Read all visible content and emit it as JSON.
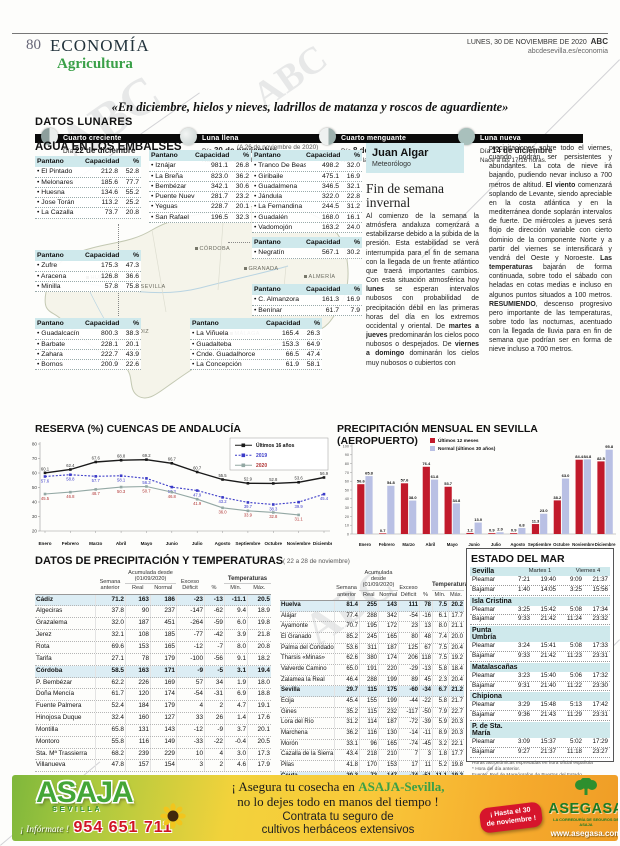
{
  "header": {
    "page_number": "80",
    "section": "ECONOMÍA",
    "subsection": "Agricultura",
    "date": "LUNES, 30 DE NOVIEMBRE DE 2020",
    "brand": "ABC",
    "site": "abcdesevilla.es/economia"
  },
  "quote": "«En diciembre, hielos y nieves, ladrillos de matanza y roscos de aguardiente»",
  "lunar": {
    "title": "DATOS LUNARES",
    "phases": [
      {
        "name": "Cuarto creciente",
        "day_label": "Día",
        "date": "22 de diciembre",
        "rise": "Nace a las 0:41 horas.",
        "icon": "waxing"
      },
      {
        "name": "Luna llena",
        "day_label": "Día",
        "date": "30 de noviembre",
        "rise": "Nace a las 10:30 horas.",
        "icon": "full"
      },
      {
        "name": "Cuarto menguante",
        "day_label": "Día",
        "date": "8 de diciembre",
        "rise": "Nace a las 1:36 horas.",
        "icon": "waning"
      },
      {
        "name": "Luna nueva",
        "day_label": "Día",
        "date": "14 de diciembre",
        "rise": "Nace a las 17:16 horas.",
        "icon": "new"
      }
    ]
  },
  "embalses": {
    "title": "AGUA EN LOS EMBALSES",
    "note": "(A 26 de noviembre de 2020)",
    "col_headers": {
      "name": "Pantano",
      "cap": "Capacidad",
      "pct": "%"
    },
    "map_cities": [
      "CÓRDOBA",
      "GRANADA",
      "ALMERÍA",
      "SEVILLA",
      "HUELVA",
      "CÁDIZ",
      "MÁLAGA"
    ],
    "tables": {
      "t1": [
        {
          "name": "El Pintado",
          "cap": "212.8",
          "pct": "52.8"
        },
        {
          "name": "Melonares",
          "cap": "185.6",
          "pct": "77.7"
        },
        {
          "name": "Huesna",
          "cap": "134.6",
          "pct": "55.2"
        },
        {
          "name": "Jose Torán",
          "cap": "113.2",
          "pct": "25.2"
        },
        {
          "name": "La Cazalla",
          "cap": "73.7",
          "pct": "20.8"
        }
      ],
      "t2": [
        {
          "name": "Iznájar",
          "cap": "981.1",
          "pct": "26.8"
        },
        {
          "name": "La Breña",
          "cap": "823.0",
          "pct": "36.2"
        },
        {
          "name": "Bembézar",
          "cap": "342.1",
          "pct": "30.6"
        },
        {
          "name": "Puente Nuevo",
          "cap": "281.7",
          "pct": "23.2"
        },
        {
          "name": "Yeguas",
          "cap": "228.7",
          "pct": "20.1"
        },
        {
          "name": "San Rafael",
          "cap": "196.5",
          "pct": "32.3"
        }
      ],
      "t3": [
        {
          "name": "Zufre",
          "cap": "175.3",
          "pct": "47.3"
        },
        {
          "name": "Aracena",
          "cap": "126.8",
          "pct": "36.6"
        },
        {
          "name": "Minilla",
          "cap": "57.8",
          "pct": "75.8"
        }
      ],
      "t4": [
        {
          "name": "Tranco De Beas",
          "cap": "498.2",
          "pct": "32.0"
        },
        {
          "name": "Giribaile",
          "cap": "475.1",
          "pct": "16.9"
        },
        {
          "name": "Guadalmena",
          "cap": "346.5",
          "pct": "32.1"
        },
        {
          "name": "Jándula",
          "cap": "322.0",
          "pct": "22.8"
        },
        {
          "name": "La Fernandina",
          "cap": "244.5",
          "pct": "31.2"
        },
        {
          "name": "Guadalén",
          "cap": "168.0",
          "pct": "16.1"
        },
        {
          "name": "Vadomojón",
          "cap": "163.2",
          "pct": "24.0"
        }
      ],
      "t5": [
        {
          "name": "Negratín",
          "cap": "567.1",
          "pct": "30.2"
        }
      ],
      "t6": [
        {
          "name": "C. Almanzora",
          "cap": "161.3",
          "pct": "16.9"
        },
        {
          "name": "Benínar",
          "cap": "61.7",
          "pct": "7.9"
        }
      ],
      "t7": [
        {
          "name": "Guadalcacín",
          "cap": "800.3",
          "pct": "38.3"
        },
        {
          "name": "Barbate",
          "cap": "228.1",
          "pct": "20.1"
        },
        {
          "name": "Zahara",
          "cap": "222.7",
          "pct": "43.9"
        },
        {
          "name": "Bornos",
          "cap": "200.9",
          "pct": "22.6"
        }
      ],
      "t8": [
        {
          "name": "La Viñuela",
          "cap": "165.4",
          "pct": "26.3"
        },
        {
          "name": "Guadalteba",
          "cap": "153.3",
          "pct": "64.9"
        },
        {
          "name": "Cnde. Guadalhorce",
          "cap": "66.5",
          "pct": "47.4"
        },
        {
          "name": "La Concepción",
          "cap": "61.9",
          "pct": "58.1"
        }
      ]
    }
  },
  "forecast": {
    "author": "Juan Algar",
    "role": "Meteorólogo",
    "title": "Fin de semana invernal",
    "col1": "Al comienzo de la semana la atmósfera andaluza comenzará a estabilizarse debido a la subida de la presión. Esta estabilidad se verá interrumpida para el fin de semana con la llegada de un frente atlántico que traerá importantes cambios. Con esta situación atmosférica hoy **lunes** se esperan intervalos nubosos con probabilidad de precipitación débil en las primeras horas del día en los extremos occidental y oriental. De **martes a jueves** predominarán los cielos poco nubosos o despejados. De **viernes a domingo** dominarán los cielos muy nubosos o cubiertos con",
    "col2": "precipitaciones sobre todo el viernes, cuando podrán ser persistentes y abundantes. La cota de nieve irá bajando, pudiendo nevar incluso a 700 metros de altitud. **El viento** comenzará soplando de Levante, siendo apreciable en la costa atlántica y en la mediterránea donde soplarán intervalos de fuerte. De miércoles a jueves será flojo de dirección variable con cierto dominio de la componente Norte y a partir del viernes se intensificará y vendrá del Oeste y Noroeste. **Las temperaturas** bajarán de forma continuada, sobre todo el sábado con heladas en cotas medias e incluso en algunos puntos situados a 100 metros. **RESUMIENDO**, descenso progresivo pero importante de las temperaturas, sobre todo las nocturnas, acentuado con la llegada de lluvia para en fin de semana que podrían ser en forma de nieve incluso a 700 metros."
  },
  "chart_data": [
    {
      "type": "line",
      "title": "RESERVA (%) CUENCAS DE ANDALUCÍA",
      "categories": [
        "Enero",
        "Febrero",
        "Marzo",
        "Abril",
        "Mayo",
        "Junio",
        "Julio",
        "Agosto",
        "Septiembre",
        "Octubre",
        "Noviembre",
        "Diciembre"
      ],
      "ylim": [
        20,
        80
      ],
      "yticks": [
        20,
        30,
        40,
        50,
        60,
        70,
        80
      ],
      "grid": false,
      "legend_position": "top-right",
      "series": [
        {
          "name": "Últimos 16 años",
          "color": "#1a1a1a",
          "label_color": "#333333",
          "values": [
            60.1,
            62.4,
            67.6,
            68.8,
            69.2,
            66.7,
            60.7,
            55.5,
            52.9,
            52.8,
            53.6,
            56.9
          ]
        },
        {
          "name": "2019",
          "color": "#3b3bc8",
          "dashed": true,
          "values": [
            57.6,
            58.8,
            57.7,
            58.1,
            56.3,
            50.3,
            47.9,
            43.2,
            39.7,
            38.3,
            39.9,
            45.4
          ]
        },
        {
          "name": "2020",
          "color": "#93a8a4",
          "label_color": "#b03434",
          "legend_color": "#b03434",
          "values": [
            45.5,
            46.8,
            48.7,
            50.3,
            50.7,
            46.8,
            41.9,
            36.0,
            33.9,
            32.8,
            31.1
          ]
        }
      ]
    },
    {
      "type": "bar",
      "title": "PRECIPITACIÓN MENSUAL EN SEVILLA (AEROPUERTO)",
      "categories": [
        "Enero",
        "Febrero",
        "Marzo",
        "Abril",
        "Mayo",
        "Junio",
        "Julio",
        "Agosto",
        "Septiembre",
        "Octubre",
        "Noviembre",
        "Diciembre"
      ],
      "ylim": [
        0,
        100
      ],
      "ytick_step": 10,
      "grid": false,
      "legend_position": "top",
      "series": [
        {
          "name": "Últimos 12 meses",
          "color": "#c11a2b",
          "values": [
            56.6,
            0.7,
            57.6,
            76.4,
            53.7,
            1.2,
            0.9,
            0.9,
            11.3,
            38.2,
            84.4,
            82.5
          ]
        },
        {
          "name": "Normal (últimos 30 años)",
          "color": "#b9c0e4",
          "values": [
            65.8,
            54.8,
            38.0,
            61.8,
            34.8,
            13.0,
            2.0,
            6.8,
            23.0,
            63.0,
            84.8,
            95.8
          ]
        }
      ]
    }
  ],
  "precip_table": {
    "title": "DATOS DE PRECIPITACIÓN Y TEMPERATURAS",
    "note": "( 22 a 28 de noviembre)",
    "headers": {
      "semana": "Semana anterior",
      "acumulada": "Acumulada desde (01/09/2020)",
      "real": "Real",
      "normal": "Normal",
      "exceso": "Exceso Déficit",
      "pct": "%",
      "temps": "Temperaturas",
      "min": "Mín.",
      "max": "Máx."
    },
    "left_rows": [
      {
        "name": "Cádiz",
        "cls": "prov",
        "v": [
          "71.2",
          "163",
          "186",
          "-23",
          "-13",
          "-11.1",
          "20.5"
        ]
      },
      {
        "name": "Algeciras",
        "cls": "",
        "v": [
          "37.8",
          "90",
          "237",
          "-147",
          "-62",
          "9.4",
          "18.9"
        ]
      },
      {
        "name": "Grazalema",
        "cls": "",
        "v": [
          "32.0",
          "187",
          "451",
          "-264",
          "-59",
          "6.0",
          "19.8"
        ]
      },
      {
        "name": "Jerez",
        "cls": "",
        "v": [
          "32.1",
          "108",
          "185",
          "-77",
          "-42",
          "3.9",
          "21.8"
        ]
      },
      {
        "name": "Rota",
        "cls": "",
        "v": [
          "69.6",
          "153",
          "165",
          "-12",
          "-7",
          "8.0",
          "20.8"
        ]
      },
      {
        "name": "Tarifa",
        "cls": "",
        "v": [
          "27.1",
          "78",
          "179",
          "-100",
          "-56",
          "9.1",
          "18.2"
        ]
      },
      {
        "name": "Córdoba",
        "cls": "prov",
        "v": [
          "58.5",
          "163",
          "171",
          "-9",
          "-5",
          "3.1",
          "19.4"
        ]
      },
      {
        "name": "P. Bembézar",
        "cls": "",
        "v": [
          "62.2",
          "226",
          "169",
          "57",
          "34",
          "1.9",
          "18.0"
        ]
      },
      {
        "name": "Doña Mencía",
        "cls": "",
        "v": [
          "61.7",
          "120",
          "174",
          "-54",
          "-31",
          "6.9",
          "18.8"
        ]
      },
      {
        "name": "Fuente Palmera",
        "cls": "",
        "v": [
          "52.4",
          "184",
          "179",
          "4",
          "2",
          "4.7",
          "19.1"
        ]
      },
      {
        "name": "Hinojosa Duque",
        "cls": "",
        "v": [
          "32.4",
          "160",
          "127",
          "33",
          "26",
          "1.4",
          "17.6"
        ]
      },
      {
        "name": "Montilla",
        "cls": "",
        "v": [
          "65.8",
          "131",
          "143",
          "-12",
          "-9",
          "3.7",
          "20.1"
        ]
      },
      {
        "name": "Montoro",
        "cls": "",
        "v": [
          "55.8",
          "116",
          "149",
          "-33",
          "-22",
          "-0.4",
          "20.5"
        ]
      },
      {
        "name": "Sta. Mª Trassierra",
        "cls": "",
        "v": [
          "68.2",
          "239",
          "229",
          "10",
          "4",
          "3.0",
          "17.3"
        ]
      },
      {
        "name": "Villanueva",
        "cls": "",
        "v": [
          "47.8",
          "157",
          "154",
          "3",
          "2",
          "4.6",
          "17.9"
        ]
      }
    ],
    "right_rows": [
      {
        "name": "Huelva",
        "cls": "prov",
        "v": [
          "81.4",
          "255",
          "143",
          "111",
          "78",
          "7.5",
          "20.2"
        ]
      },
      {
        "name": "Alájar",
        "cls": "",
        "v": [
          "77.4",
          "288",
          "342",
          "-54",
          "-16",
          "6.1",
          "17.7"
        ]
      },
      {
        "name": "Ayamonte",
        "cls": "",
        "v": [
          "70.7",
          "195",
          "172",
          "23",
          "13",
          "8.0",
          "21.1"
        ]
      },
      {
        "name": "El Granado",
        "cls": "",
        "v": [
          "85.2",
          "245",
          "165",
          "80",
          "48",
          "7.4",
          "20.0"
        ]
      },
      {
        "name": "Palma del Condado",
        "cls": "",
        "v": [
          "53.6",
          "311",
          "187",
          "125",
          "67",
          "7.5",
          "20.4"
        ]
      },
      {
        "name": "Tharsis «Minas»",
        "cls": "",
        "v": [
          "62.6",
          "380",
          "174",
          "206",
          "118",
          "7.5",
          "19.2"
        ]
      },
      {
        "name": "Valverde Camino",
        "cls": "",
        "v": [
          "65.0",
          "191",
          "220",
          "-29",
          "-13",
          "5.8",
          "18.4"
        ]
      },
      {
        "name": "Zalamea la Real",
        "cls": "",
        "v": [
          "46.4",
          "288",
          "199",
          "89",
          "45",
          "2.3",
          "20.4"
        ]
      },
      {
        "name": "Sevilla",
        "cls": "prov",
        "v": [
          "29.7",
          "115",
          "175",
          "-60",
          "-34",
          "6.7",
          "21.2"
        ]
      },
      {
        "name": "Écija",
        "cls": "",
        "v": [
          "45.4",
          "155",
          "199",
          "-44",
          "-22",
          "5.8",
          "21.7"
        ]
      },
      {
        "name": "Gines",
        "cls": "",
        "v": [
          "35.2",
          "115",
          "232",
          "-117",
          "-50",
          "7.9",
          "22.7"
        ]
      },
      {
        "name": "Lora del Río",
        "cls": "",
        "v": [
          "31.2",
          "114",
          "187",
          "-72",
          "-39",
          "5.9",
          "20.3"
        ]
      },
      {
        "name": "Marchena",
        "cls": "",
        "v": [
          "36.2",
          "116",
          "130",
          "-14",
          "-11",
          "8.9",
          "20.3"
        ]
      },
      {
        "name": "Morón",
        "cls": "",
        "v": [
          "33.1",
          "96",
          "165",
          "-74",
          "-45",
          "3.2",
          "22.1"
        ]
      },
      {
        "name": "Cazalla de la Sierra",
        "cls": "",
        "v": [
          "43.4",
          "218",
          "210",
          "7",
          "3",
          "1.8",
          "17.7"
        ]
      },
      {
        "name": "Pilas",
        "cls": "",
        "v": [
          "41.8",
          "170",
          "153",
          "17",
          "11",
          "5.2",
          "19.8"
        ]
      },
      {
        "name": "Ceuta",
        "cls": "prov",
        "v": [
          "20.3",
          "72",
          "147",
          "-74",
          "-51",
          "11.1",
          "19.2"
        ]
      }
    ]
  },
  "sea": {
    "title": "ESTADO DEL MAR",
    "row_labels": {
      "high": "Pleamar",
      "low": "Bajamar"
    },
    "localities": [
      {
        "name": "Sevilla",
        "day1": "Martes 1",
        "day2": "Viernes 4",
        "pleamar": [
          "7:21",
          "19:40",
          "9:09",
          "21:37"
        ],
        "bajamar": [
          "1:40",
          "14:05",
          "3:25",
          "15:56"
        ]
      },
      {
        "name": "Isla Cristina",
        "pleamar": [
          "3:25",
          "15:42",
          "5:08",
          "17:34"
        ],
        "bajamar": [
          "9:33",
          "21:42",
          "11:24",
          "23:32"
        ]
      },
      {
        "name": "Punta Umbría",
        "pleamar": [
          "3:24",
          "15:41",
          "5:08",
          "17:33"
        ],
        "bajamar": [
          "9:33",
          "21:42",
          "11:23",
          "23:31"
        ]
      },
      {
        "name": "Matalascañas",
        "pleamar": [
          "3:23",
          "15:40",
          "5:06",
          "17:32"
        ],
        "bajamar": [
          "9:31",
          "21:40",
          "11:22",
          "23:30"
        ]
      },
      {
        "name": "Chipiona",
        "pleamar": [
          "3:29",
          "15:48",
          "5:13",
          "17:42"
        ],
        "bajamar": [
          "9:36",
          "21:43",
          "11:29",
          "23:31"
        ]
      },
      {
        "name": "P. de Sta. María",
        "pleamar": [
          "3:09",
          "15:37",
          "5:02",
          "17:29"
        ],
        "bajamar": [
          "9:27",
          "21:37",
          "11:18",
          "23:27"
        ]
      }
    ],
    "notes": [
      "Horas astronómicas expresadas en hora oficial española",
      "* Hora del día anterior.",
      "Fuente: Red de Mareógrafos de Puertos del Estado"
    ]
  },
  "ad": {
    "brand": "ASAJA",
    "brand_sub": "SEVILLA",
    "informate": "¡ Infórmate !",
    "phone": "954 651 711",
    "headline_pre": "¡ Asegura tu cosecha en ",
    "headline_brand": "ASAJA-Sevilla,",
    "headline_post": "no lo dejes todo en manos del tiempo !",
    "offer_line1": "Contrata tu seguro de",
    "offer_line2": "cultivos herbáceos  extensivos",
    "badge_line1": "¡ Hasta el 30",
    "badge_line2": "de noviembre !",
    "partner": "ASEGASA",
    "partner_tagline": "LA CORREDURÍA DE SEGUROS DE ASAJA",
    "partner_url": "www.asegasa.com"
  },
  "colors": {
    "accent_cyan": "#cfe9ec",
    "prov_row_bg": "#dcedf4",
    "brand_green": "#3aa048",
    "ad_red": "#d6152c",
    "bar_red": "#c11a2b",
    "bar_normal": "#b9c0e4",
    "line_2019": "#3b3bc8",
    "line_2020_label": "#b03434"
  }
}
